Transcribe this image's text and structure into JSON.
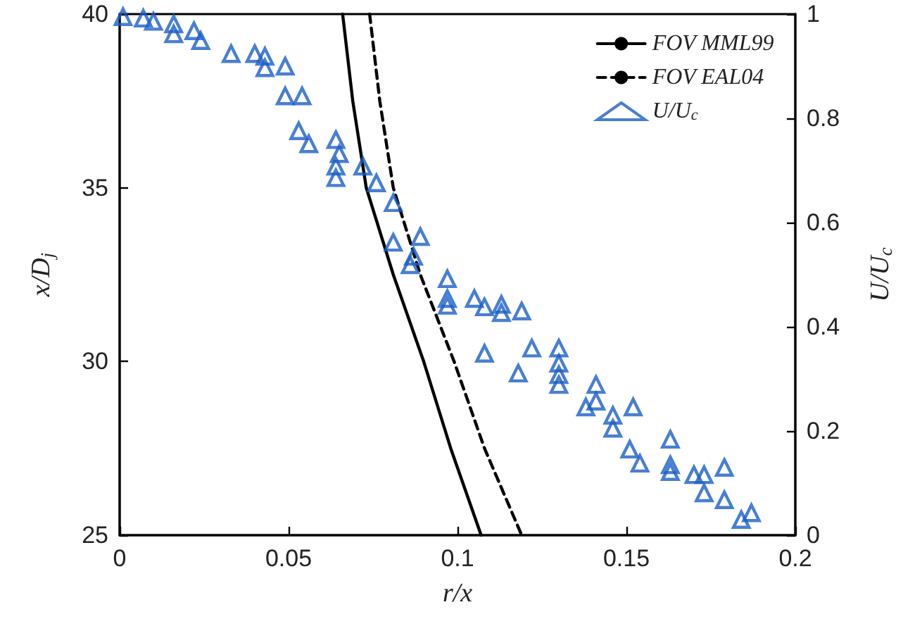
{
  "chart_data": {
    "type": "line",
    "xlabel": "r/x",
    "ylabel": "x/D$_{j}$",
    "y2label": "U/U$_{c}$",
    "xlim": [
      0,
      0.2
    ],
    "xticks": [
      0,
      0.05,
      0.1,
      0.15,
      0.2
    ],
    "ylim": [
      25,
      40
    ],
    "yticks": [
      25,
      30,
      35,
      40
    ],
    "y2lim": [
      0,
      1
    ],
    "y2ticks": [
      0,
      0.2,
      0.4,
      0.6,
      0.8,
      1
    ],
    "grid": false,
    "legend": "top right",
    "series": [
      {
        "name": "FOV MML99",
        "color": "#000000",
        "line_style": "solid",
        "marker": "none",
        "x": [
          0.066,
          0.069,
          0.073,
          0.081,
          0.09,
          0.098,
          0.107
        ],
        "values": [
          40,
          37.5,
          35,
          32.5,
          30,
          27.5,
          25
        ]
      },
      {
        "name": "FOV EAL04",
        "color": "#000000",
        "line_style": "dashed",
        "marker": "none",
        "x": [
          0.074,
          0.077,
          0.081,
          0.089,
          0.099,
          0.108,
          0.119
        ],
        "values": [
          40,
          37.5,
          35,
          32.5,
          30,
          27.5,
          25
        ]
      },
      {
        "name": "U/U$_{c}$",
        "type": "scatter",
        "axis": "y2",
        "color": "#1a5fc8",
        "marker": "triangle",
        "x": [
          0.001,
          0.007,
          0.01,
          0.016,
          0.016,
          0.022,
          0.024,
          0.033,
          0.04,
          0.043,
          0.043,
          0.049,
          0.049,
          0.054,
          0.053,
          0.056,
          0.064,
          0.065,
          0.064,
          0.064,
          0.072,
          0.076,
          0.081,
          0.081,
          0.089,
          0.087,
          0.086,
          0.097,
          0.097,
          0.097,
          0.105,
          0.108,
          0.113,
          0.113,
          0.119,
          0.108,
          0.122,
          0.118,
          0.13,
          0.13,
          0.13,
          0.13,
          0.141,
          0.141,
          0.138,
          0.146,
          0.146,
          0.152,
          0.151,
          0.154,
          0.163,
          0.163,
          0.163,
          0.17,
          0.173,
          0.173,
          0.179,
          0.179,
          0.184,
          0.187
        ],
        "values": [
          0.995,
          0.992,
          0.986,
          0.981,
          0.962,
          0.968,
          0.949,
          0.924,
          0.924,
          0.919,
          0.897,
          0.9,
          0.843,
          0.843,
          0.776,
          0.751,
          0.759,
          0.732,
          0.708,
          0.686,
          0.708,
          0.676,
          0.638,
          0.562,
          0.573,
          0.535,
          0.519,
          0.492,
          0.454,
          0.441,
          0.454,
          0.438,
          0.443,
          0.427,
          0.43,
          0.349,
          0.359,
          0.311,
          0.359,
          0.33,
          0.308,
          0.289,
          0.289,
          0.257,
          0.246,
          0.23,
          0.205,
          0.246,
          0.165,
          0.138,
          0.184,
          0.135,
          0.122,
          0.116,
          0.116,
          0.081,
          0.13,
          0.068,
          0.03,
          0.043
        ]
      }
    ]
  }
}
